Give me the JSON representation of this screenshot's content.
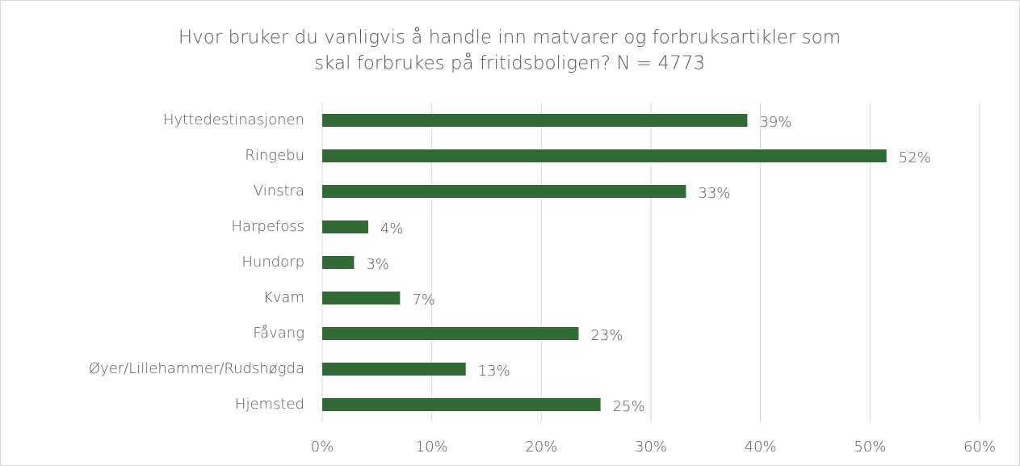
{
  "chart_data": {
    "type": "barh",
    "title": [
      "Hvor bruker du vanligvis å handle inn matvarer og forbruksartikler som",
      "skal forbrukes på fritidsboligen?  N = 4773"
    ],
    "categories": [
      "Hyttedestinasjonen",
      "Ringebu",
      "Vinstra",
      "Harpefoss",
      "Hundorp",
      "Kvam",
      "Fåvang",
      "Øyer/Lillehammer/Rudshøgda",
      "Hjemsted"
    ],
    "values": [
      38.8,
      51.5,
      33.2,
      4.2,
      2.9,
      7.1,
      23.4,
      13.1,
      25.4
    ],
    "value_labels": [
      "39%",
      "52%",
      "33%",
      "4%",
      "3%",
      "7%",
      "23%",
      "13%",
      "25%"
    ],
    "color": "#2f6b33",
    "xlim": [
      0,
      60
    ],
    "xticks": [
      {
        "value": 0,
        "label": "0%"
      },
      {
        "value": 10,
        "label": "10%"
      },
      {
        "value": 20,
        "label": "20%"
      },
      {
        "value": 30,
        "label": "30%"
      },
      {
        "value": 40,
        "label": "40%"
      },
      {
        "value": 50,
        "label": "50%"
      },
      {
        "value": 60,
        "label": "60%"
      }
    ],
    "grid": true
  }
}
